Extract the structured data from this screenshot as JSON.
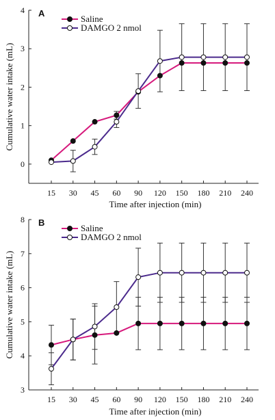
{
  "chart_data": [
    {
      "type": "line",
      "panel_label": "A",
      "categories": [
        "15",
        "30",
        "45",
        "60",
        "90",
        "120",
        "150",
        "180",
        "210",
        "240"
      ],
      "xlabel": "Time after injection (min)",
      "ylabel": "Cumulative water intake (mL)",
      "ylim": [
        -0.5,
        4
      ],
      "yticks": [
        "0",
        "1",
        "2",
        "3",
        "4"
      ],
      "legend_position": "top-left",
      "series": [
        {
          "name": "Saline",
          "color": "#d6197c",
          "marker": "filled-circle",
          "values": [
            0.1,
            0.6,
            1.1,
            1.27,
            1.88,
            2.3,
            2.63,
            2.63,
            2.63,
            2.63
          ],
          "errors": [
            null,
            null,
            null,
            0.1,
            null,
            null,
            null,
            null,
            null,
            null
          ]
        },
        {
          "name": "DAMGO 2 nmol",
          "color": "#4b2a8c",
          "marker": "open-circle",
          "values": [
            0.05,
            0.08,
            0.45,
            1.1,
            1.9,
            2.68,
            2.78,
            2.78,
            2.78,
            2.78
          ],
          "errors": [
            null,
            0.28,
            0.2,
            0.15,
            0.45,
            0.8,
            0.87,
            0.87,
            0.87,
            0.87
          ]
        }
      ]
    },
    {
      "type": "line",
      "panel_label": "B",
      "categories": [
        "15",
        "30",
        "45",
        "60",
        "90",
        "120",
        "150",
        "180",
        "210",
        "240"
      ],
      "xlabel": "Time after injection (min)",
      "ylabel": "Cumulative water intake (mL)",
      "ylim": [
        3,
        8
      ],
      "yticks": [
        "3",
        "4",
        "5",
        "6",
        "7",
        "8"
      ],
      "legend_position": "top-left",
      "series": [
        {
          "name": "Saline",
          "color": "#d6197c",
          "marker": "filled-circle",
          "values": [
            4.32,
            4.48,
            4.61,
            4.67,
            4.95,
            4.95,
            4.95,
            4.95,
            4.95,
            4.95
          ],
          "errors": [
            0.58,
            0.6,
            0.85,
            null,
            0.77,
            0.77,
            0.77,
            0.77,
            0.77,
            0.77
          ]
        },
        {
          "name": "DAMGO 2 nmol",
          "color": "#4b2a8c",
          "marker": "open-circle",
          "values": [
            3.62,
            4.48,
            4.86,
            5.43,
            6.31,
            6.44,
            6.44,
            6.44,
            6.44,
            6.44
          ],
          "errors": [
            0.47,
            0.6,
            0.67,
            0.75,
            0.85,
            0.87,
            0.87,
            0.87,
            0.87,
            0.87
          ]
        }
      ]
    }
  ]
}
